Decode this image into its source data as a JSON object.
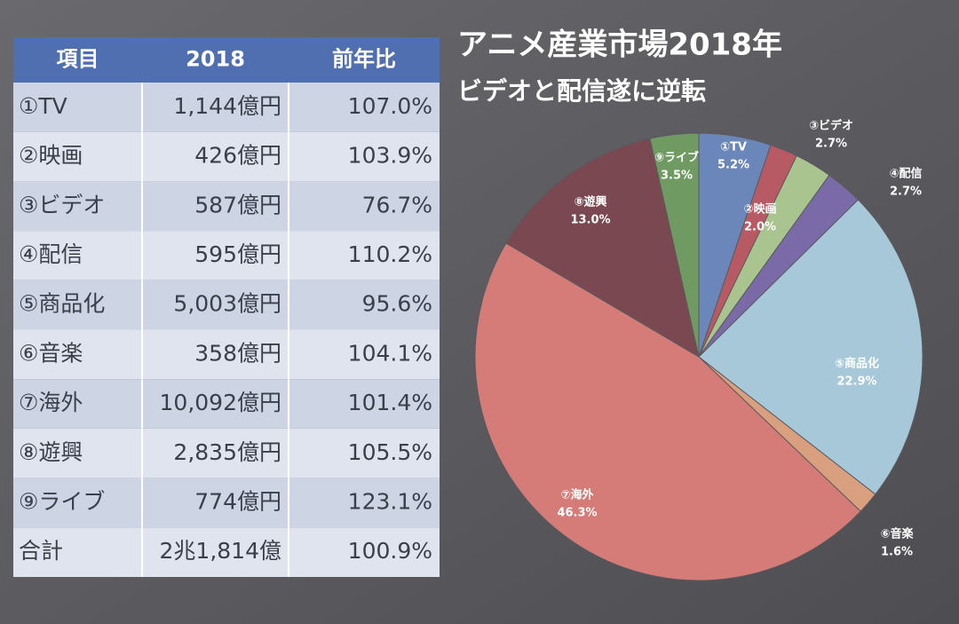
{
  "table": {
    "header": [
      "項目",
      "2018",
      "前年比"
    ],
    "rows": [
      [
        "①TV",
        "1,144億円",
        "107.0%"
      ],
      [
        "②映画",
        "426億円",
        "103.9%"
      ],
      [
        "③ビデオ",
        "587億円",
        "76.7%"
      ],
      [
        "④配信",
        "595億円",
        "110.2%"
      ],
      [
        "⑤商品化",
        "5,003億円",
        "95.6%"
      ],
      [
        "⑥音楽",
        "358億円",
        "104.1%"
      ],
      [
        "⑦海外",
        "10,092億円",
        "101.4%"
      ],
      [
        "⑧遊興",
        "2,835億円",
        "105.5%"
      ],
      [
        "⑨ライブ",
        "774億円",
        "123.1%"
      ],
      [
        "合計",
        "2兆1,814億",
        "100.9%"
      ]
    ]
  },
  "chart_data": {
    "type": "pie",
    "title": "アニメ産業市場2018年",
    "subtitle": "ビデオと配信遂に逆転",
    "categories": [
      "①TV",
      "②映画",
      "③ビデオ",
      "④配信",
      "⑤商品化",
      "⑥音楽",
      "⑦海外",
      "⑧遊興",
      "⑨ライブ"
    ],
    "values": [
      5.2,
      2.0,
      2.7,
      2.7,
      22.9,
      1.6,
      46.3,
      13.0,
      3.5
    ],
    "value_labels": [
      "5.2%",
      "2.0%",
      "2.7%",
      "2.7%",
      "22.9%",
      "1.6%",
      "46.3%",
      "13.0%",
      "3.5%"
    ],
    "colors": [
      "#6b86b8",
      "#b85a63",
      "#a9c48f",
      "#7b6aa8",
      "#a6c8d8",
      "#d9a07f",
      "#d67c78",
      "#7a4850",
      "#6f9a62"
    ]
  }
}
